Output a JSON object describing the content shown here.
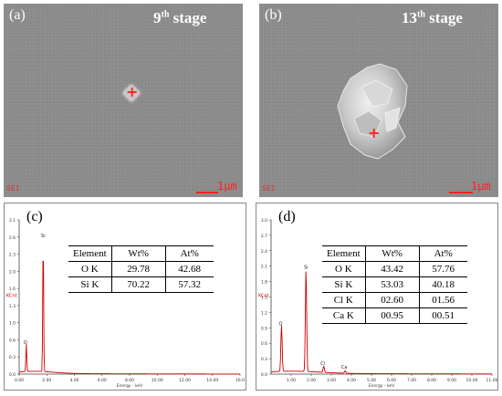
{
  "panels": {
    "a": {
      "label": "(a)",
      "stage_num": "9",
      "stage_sup": "th",
      "stage_word": "stage",
      "detector": "SE1",
      "scale": "1μm"
    },
    "b": {
      "label": "(b)",
      "stage_num": "13",
      "stage_sup": "th",
      "stage_word": "stage",
      "detector": "SE1",
      "scale": "1μm"
    },
    "c": {
      "label": "(c)"
    },
    "d": {
      "label": "(d)"
    }
  },
  "tables": {
    "c": {
      "headers": [
        "Element",
        "Wt%",
        "At%"
      ],
      "rows": [
        [
          "O K",
          "29.78",
          "42.68"
        ],
        [
          "Si K",
          "70.22",
          "57.32"
        ]
      ]
    },
    "d": {
      "headers": [
        "Element",
        "Wt%",
        "At%"
      ],
      "rows": [
        [
          "O K",
          "43.42",
          "57.76"
        ],
        [
          "Si K",
          "53.03",
          "40.18"
        ],
        [
          "Cl K",
          "02.60",
          "01.56"
        ],
        [
          "Ca K",
          "00.95",
          "00.51"
        ]
      ]
    }
  },
  "chart_data": [
    {
      "type": "line",
      "xlabel": "Energy - keV",
      "ylabel": "KCnt",
      "xlim": [
        0,
        16
      ],
      "ylim": [
        0,
        3.1
      ],
      "xticks": [
        "0.00",
        "2.00",
        "4.00",
        "6.00",
        "8.00",
        "10.00",
        "12.00",
        "14.00",
        "16.0"
      ],
      "yticks": [
        "0.0",
        "0.3",
        "0.6",
        "1.0",
        "1.3",
        "1.6",
        "2.0",
        "2.3",
        "2.6",
        "3.1"
      ],
      "peaks": [
        {
          "label": "O",
          "x": 0.52,
          "y": 0.55
        },
        {
          "label": "Si",
          "x": 1.74,
          "y": 2.7
        }
      ],
      "color": "#cc0000"
    },
    {
      "type": "line",
      "xlabel": "Energy - keV",
      "ylabel": "KCnt",
      "xlim": [
        0,
        11
      ],
      "ylim": [
        0,
        3.0
      ],
      "xticks": [
        "1.00",
        "2.00",
        "3.00",
        "4.00",
        "5.00",
        "6.00",
        "7.00",
        "8.00",
        "9.00",
        "10.00",
        "11.00"
      ],
      "yticks": [
        "0.0",
        "0.3",
        "0.6",
        "0.9",
        "1.2",
        "1.5",
        "1.8",
        "2.1",
        "2.4",
        "2.7",
        "3.0"
      ],
      "peaks": [
        {
          "label": "O",
          "x": 0.52,
          "y": 0.9
        },
        {
          "label": "Si",
          "x": 1.74,
          "y": 2.0
        },
        {
          "label": "Cl",
          "x": 2.62,
          "y": 0.12
        },
        {
          "label": "Ca",
          "x": 3.69,
          "y": 0.05
        }
      ],
      "color": "#cc0000"
    }
  ]
}
